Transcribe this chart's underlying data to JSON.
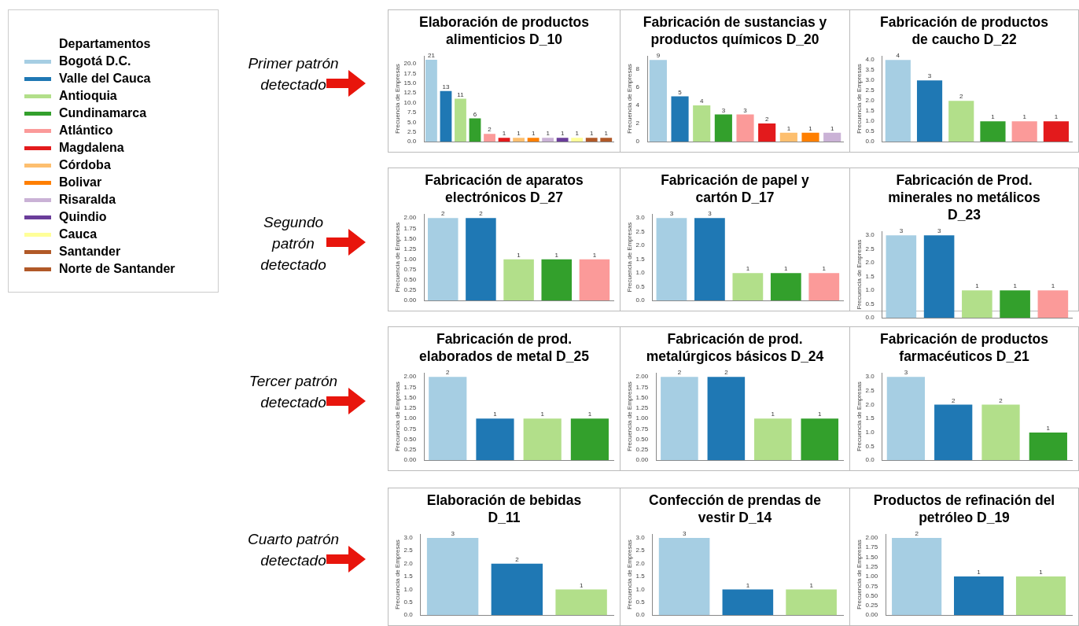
{
  "chart_data": [
    {
      "type": "other",
      "legend_title": "Departamentos",
      "categories": [
        "Bogotá D.C.",
        "Valle del Cauca",
        "Antioquia",
        "Cundinamarca",
        "Atlántico",
        "Magdalena",
        "Córdoba",
        "Bolivar",
        "Risaralda",
        "Quindio",
        "Cauca",
        "Santander",
        "Norte de Santander"
      ],
      "colors": [
        "#a6cee3",
        "#1f78b4",
        "#b2df8a",
        "#33a02c",
        "#fb9a99",
        "#e31a1c",
        "#fdbf6f",
        "#ff7f00",
        "#cab2d6",
        "#6a3d9a",
        "#ffff99",
        "#b15928",
        "#b15928"
      ]
    },
    {
      "type": "bar",
      "title": "Elaboración de productos alimenticios D_10",
      "annotations": [
        "Primer patrón detectado"
      ],
      "ylabel": "Frecuencia de Empresas",
      "categories": [
        null,
        null,
        null,
        null,
        null,
        null,
        null,
        null,
        null,
        null,
        null,
        null,
        null
      ],
      "values": [
        21,
        13,
        11,
        6,
        2,
        1,
        1,
        1,
        1,
        1,
        1,
        1,
        1
      ],
      "colors": [
        "#a6cee3",
        "#1f78b4",
        "#b2df8a",
        "#33a02c",
        "#fb9a99",
        "#e31a1c",
        "#fdbf6f",
        "#ff7f00",
        "#cab2d6",
        "#6a3d9a",
        "#ffff99",
        "#b15928",
        "#b15928"
      ],
      "ylim": [
        0,
        22
      ],
      "yticks": [
        {
          "value": 0,
          "label": "0.0"
        },
        {
          "value": 2.5,
          "label": "2.5"
        },
        {
          "value": 5,
          "label": "5.0"
        },
        {
          "value": 7.5,
          "label": "7.5"
        },
        {
          "value": 10,
          "label": "10.0"
        },
        {
          "value": 12.5,
          "label": "12.5"
        },
        {
          "value": 15,
          "label": "15.0"
        },
        {
          "value": 17.5,
          "label": "17.5"
        },
        {
          "value": 20,
          "label": "20.0"
        }
      ],
      "data_labels": true
    },
    {
      "type": "bar",
      "title": "Fabricación de sustancias y productos químicos D_20",
      "ylabel": "Frecuencia de Empresas",
      "categories": [
        null,
        null,
        null,
        null,
        null,
        null,
        null,
        null,
        null
      ],
      "values": [
        9,
        5,
        4,
        3,
        3,
        2,
        1,
        1,
        1
      ],
      "colors": [
        "#a6cee3",
        "#1f78b4",
        "#b2df8a",
        "#33a02c",
        "#fb9a99",
        "#e31a1c",
        "#fdbf6f",
        "#ff7f00",
        "#cab2d6"
      ],
      "ylim": [
        0,
        9.45
      ],
      "yticks": [
        0,
        2,
        4,
        6,
        8
      ],
      "data_labels": true
    },
    {
      "type": "bar",
      "title": "Fabricación de productos de caucho D_22",
      "ylabel": "Frecuencia de Empresas",
      "categories": [
        null,
        null,
        null,
        null,
        null,
        null
      ],
      "values": [
        4,
        3,
        2,
        1,
        1,
        1
      ],
      "colors": [
        "#a6cee3",
        "#1f78b4",
        "#b2df8a",
        "#33a02c",
        "#fb9a99",
        "#e31a1c"
      ],
      "ylim": [
        0,
        4.2
      ],
      "yticks": [
        {
          "value": 0,
          "label": "0.0"
        },
        {
          "value": 0.5,
          "label": "0.5"
        },
        {
          "value": 1,
          "label": "1.0"
        },
        {
          "value": 1.5,
          "label": "1.5"
        },
        {
          "value": 2,
          "label": "2.0"
        },
        {
          "value": 2.5,
          "label": "2.5"
        },
        {
          "value": 3,
          "label": "3.0"
        },
        {
          "value": 3.5,
          "label": "3.5"
        },
        {
          "value": 4,
          "label": "4.0"
        }
      ],
      "data_labels": true
    },
    {
      "type": "bar",
      "title": "Fabricación de aparatos electrónicos D_27",
      "annotations": [
        "Segundo patrón detectado"
      ],
      "ylabel": "Frecuencia de Empresas",
      "categories": [
        null,
        null,
        null,
        null,
        null
      ],
      "values": [
        2,
        2,
        1,
        1,
        1
      ],
      "colors": [
        "#a6cee3",
        "#1f78b4",
        "#b2df8a",
        "#33a02c",
        "#fb9a99"
      ],
      "ylim": [
        0,
        2.1
      ],
      "yticks": [
        {
          "value": 0,
          "label": "0.00"
        },
        {
          "value": 0.25,
          "label": "0.25"
        },
        {
          "value": 0.5,
          "label": "0.50"
        },
        {
          "value": 0.75,
          "label": "0.75"
        },
        {
          "value": 1,
          "label": "1.00"
        },
        {
          "value": 1.25,
          "label": "1.25"
        },
        {
          "value": 1.5,
          "label": "1.50"
        },
        {
          "value": 1.75,
          "label": "1.75"
        },
        {
          "value": 2,
          "label": "2.00"
        }
      ],
      "data_labels": true
    },
    {
      "type": "bar",
      "title": "Fabricación de papel y cartón D_17",
      "ylabel": "Frecuencia de Empresas",
      "categories": [
        null,
        null,
        null,
        null,
        null
      ],
      "values": [
        3,
        3,
        1,
        1,
        1
      ],
      "colors": [
        "#a6cee3",
        "#1f78b4",
        "#b2df8a",
        "#33a02c",
        "#fb9a99"
      ],
      "ylim": [
        0,
        3.15
      ],
      "yticks": [
        {
          "value": 0,
          "label": "0.0"
        },
        {
          "value": 0.5,
          "label": "0.5"
        },
        {
          "value": 1,
          "label": "1.0"
        },
        {
          "value": 1.5,
          "label": "1.5"
        },
        {
          "value": 2,
          "label": "2.0"
        },
        {
          "value": 2.5,
          "label": "2.5"
        },
        {
          "value": 3,
          "label": "3.0"
        }
      ],
      "data_labels": true
    },
    {
      "type": "bar",
      "title": "Fabricación de Prod. minerales no metálicos D_23",
      "ylabel": "Frecuencia de Empresas",
      "categories": [
        null,
        null,
        null,
        null,
        null
      ],
      "values": [
        3,
        3,
        1,
        1,
        1
      ],
      "colors": [
        "#a6cee3",
        "#1f78b4",
        "#b2df8a",
        "#33a02c",
        "#fb9a99"
      ],
      "ylim": [
        0,
        3.15
      ],
      "yticks": [
        {
          "value": 0,
          "label": "0.0"
        },
        {
          "value": 0.5,
          "label": "0.5"
        },
        {
          "value": 1,
          "label": "1.0"
        },
        {
          "value": 1.5,
          "label": "1.5"
        },
        {
          "value": 2,
          "label": "2.0"
        },
        {
          "value": 2.5,
          "label": "2.5"
        },
        {
          "value": 3,
          "label": "3.0"
        }
      ],
      "data_labels": true
    },
    {
      "type": "bar",
      "title": "Fabricación de prod. elaborados de metal D_25",
      "annotations": [
        "Tercer patrón detectado"
      ],
      "ylabel": "Frecuencia de Empresas",
      "categories": [
        null,
        null,
        null,
        null
      ],
      "values": [
        2,
        1,
        1,
        1
      ],
      "colors": [
        "#a6cee3",
        "#1f78b4",
        "#b2df8a",
        "#33a02c"
      ],
      "ylim": [
        0,
        2.1
      ],
      "yticks": [
        {
          "value": 0,
          "label": "0.00"
        },
        {
          "value": 0.25,
          "label": "0.25"
        },
        {
          "value": 0.5,
          "label": "0.50"
        },
        {
          "value": 0.75,
          "label": "0.75"
        },
        {
          "value": 1,
          "label": "1.00"
        },
        {
          "value": 1.25,
          "label": "1.25"
        },
        {
          "value": 1.5,
          "label": "1.50"
        },
        {
          "value": 1.75,
          "label": "1.75"
        },
        {
          "value": 2,
          "label": "2.00"
        }
      ],
      "data_labels": true
    },
    {
      "type": "bar",
      "title": "Fabricación de prod. metalúrgicos básicos D_24",
      "ylabel": "Frecuencia de Empresas",
      "categories": [
        null,
        null,
        null,
        null
      ],
      "values": [
        2,
        2,
        1,
        1
      ],
      "colors": [
        "#a6cee3",
        "#1f78b4",
        "#b2df8a",
        "#33a02c"
      ],
      "ylim": [
        0,
        2.1
      ],
      "yticks": [
        {
          "value": 0,
          "label": "0.00"
        },
        {
          "value": 0.25,
          "label": "0.25"
        },
        {
          "value": 0.5,
          "label": "0.50"
        },
        {
          "value": 0.75,
          "label": "0.75"
        },
        {
          "value": 1,
          "label": "1.00"
        },
        {
          "value": 1.25,
          "label": "1.25"
        },
        {
          "value": 1.5,
          "label": "1.50"
        },
        {
          "value": 1.75,
          "label": "1.75"
        },
        {
          "value": 2,
          "label": "2.00"
        }
      ],
      "data_labels": true
    },
    {
      "type": "bar",
      "title": "Fabricación de productos farmacéuticos D_21",
      "ylabel": "Frecuencia de Empresas",
      "categories": [
        null,
        null,
        null,
        null
      ],
      "values": [
        3,
        2,
        2,
        1
      ],
      "colors": [
        "#a6cee3",
        "#1f78b4",
        "#b2df8a",
        "#33a02c"
      ],
      "ylim": [
        0,
        3.15
      ],
      "yticks": [
        {
          "value": 0,
          "label": "0.0"
        },
        {
          "value": 0.5,
          "label": "0.5"
        },
        {
          "value": 1,
          "label": "1.0"
        },
        {
          "value": 1.5,
          "label": "1.5"
        },
        {
          "value": 2,
          "label": "2.0"
        },
        {
          "value": 2.5,
          "label": "2.5"
        },
        {
          "value": 3,
          "label": "3.0"
        }
      ],
      "data_labels": true
    },
    {
      "type": "bar",
      "title": "Elaboración de bebidas D_11",
      "annotations": [
        "Cuarto patrón detectado"
      ],
      "ylabel": "Frecuencia de Empresas",
      "categories": [
        null,
        null,
        null
      ],
      "values": [
        3,
        2,
        1
      ],
      "colors": [
        "#a6cee3",
        "#1f78b4",
        "#b2df8a"
      ],
      "ylim": [
        0,
        3.15
      ],
      "yticks": [
        {
          "value": 0,
          "label": "0.0"
        },
        {
          "value": 0.5,
          "label": "0.5"
        },
        {
          "value": 1,
          "label": "1.0"
        },
        {
          "value": 1.5,
          "label": "1.5"
        },
        {
          "value": 2,
          "label": "2.0"
        },
        {
          "value": 2.5,
          "label": "2.5"
        },
        {
          "value": 3,
          "label": "3.0"
        }
      ],
      "data_labels": true
    },
    {
      "type": "bar",
      "title": "Confección de prendas de vestir D_14",
      "ylabel": "Frecuencia de Empresas",
      "categories": [
        null,
        null,
        null
      ],
      "values": [
        3,
        1,
        1
      ],
      "colors": [
        "#a6cee3",
        "#1f78b4",
        "#b2df8a"
      ],
      "ylim": [
        0,
        3.15
      ],
      "yticks": [
        {
          "value": 0,
          "label": "0.0"
        },
        {
          "value": 0.5,
          "label": "0.5"
        },
        {
          "value": 1,
          "label": "1.0"
        },
        {
          "value": 1.5,
          "label": "1.5"
        },
        {
          "value": 2,
          "label": "2.0"
        },
        {
          "value": 2.5,
          "label": "2.5"
        },
        {
          "value": 3,
          "label": "3.0"
        }
      ],
      "data_labels": true
    },
    {
      "type": "bar",
      "title": "Productos de refinación del petróleo D_19",
      "ylabel": "Frecuencia de Empresas",
      "categories": [
        null,
        null,
        null
      ],
      "values": [
        2,
        1,
        1
      ],
      "colors": [
        "#a6cee3",
        "#1f78b4",
        "#b2df8a"
      ],
      "ylim": [
        0,
        2.1
      ],
      "yticks": [
        {
          "value": 0,
          "label": "0.00"
        },
        {
          "value": 0.25,
          "label": "0.25"
        },
        {
          "value": 0.5,
          "label": "0.50"
        },
        {
          "value": 0.75,
          "label": "0.75"
        },
        {
          "value": 1,
          "label": "1.00"
        },
        {
          "value": 1.25,
          "label": "1.25"
        },
        {
          "value": 1.5,
          "label": "1.50"
        },
        {
          "value": 1.75,
          "label": "1.75"
        },
        {
          "value": 2,
          "label": "2.00"
        }
      ],
      "data_labels": true
    }
  ]
}
